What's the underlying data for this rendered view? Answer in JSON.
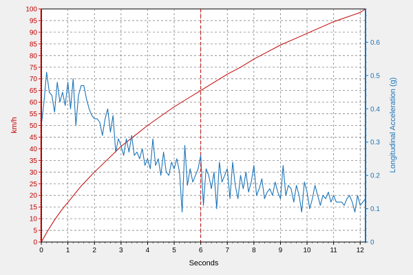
{
  "chart_data": {
    "type": "line",
    "xlabel": "Seconds",
    "ylabel_left": "km/h",
    "ylabel_right": "Longitudinal Acceleration (g)",
    "xlim": [
      0,
      12.2
    ],
    "ylim_left": [
      0,
      100
    ],
    "ylim_right": [
      0,
      0.7
    ],
    "x_ticks": [
      "0",
      "1",
      "2",
      "3",
      "4",
      "5",
      "6",
      "7",
      "8",
      "9",
      "10",
      "11",
      "12"
    ],
    "y_left_ticks": [
      "0",
      "5",
      "10",
      "15",
      "20",
      "25",
      "30",
      "35",
      "40",
      "45",
      "50",
      "55",
      "60",
      "65",
      "70",
      "75",
      "80",
      "85",
      "90",
      "95",
      "100"
    ],
    "y_right_ticks": [
      "0",
      "0.1",
      "0.2",
      "0.3",
      "0.4",
      "0.5",
      "0.6"
    ],
    "grid": true,
    "marker_x": 6,
    "colors": {
      "speed": "#c00000",
      "accel": "#1a73b8",
      "plot_bg": "#ffffff",
      "grid": "#808080"
    },
    "series": [
      {
        "axis": "left",
        "x": [
          0,
          0.25,
          0.5,
          0.75,
          1,
          1.5,
          2,
          2.5,
          3,
          3.5,
          4,
          4.5,
          5,
          5.5,
          6,
          6.5,
          7,
          7.5,
          8,
          8.5,
          9,
          9.5,
          10,
          10.5,
          11,
          11.5,
          12,
          12.2
        ],
        "values": [
          0,
          5,
          9.5,
          13.5,
          17,
          24,
          30,
          35.5,
          41,
          45.5,
          50,
          54,
          58,
          61.5,
          65,
          68.5,
          72,
          75,
          78.5,
          81.5,
          84.5,
          87,
          89.5,
          92,
          94.5,
          96.5,
          98.5,
          100
        ]
      },
      {
        "axis": "right",
        "x": [
          0,
          0.1,
          0.2,
          0.3,
          0.4,
          0.5,
          0.6,
          0.7,
          0.8,
          0.9,
          1,
          1.1,
          1.2,
          1.3,
          1.4,
          1.5,
          1.6,
          1.7,
          1.8,
          1.9,
          2,
          2.1,
          2.2,
          2.3,
          2.4,
          2.5,
          2.6,
          2.7,
          2.8,
          2.9,
          3,
          3.1,
          3.2,
          3.3,
          3.4,
          3.5,
          3.6,
          3.7,
          3.8,
          3.9,
          4,
          4.1,
          4.2,
          4.3,
          4.4,
          4.5,
          4.6,
          4.7,
          4.8,
          4.9,
          5,
          5.1,
          5.2,
          5.3,
          5.4,
          5.5,
          5.6,
          5.7,
          5.8,
          5.9,
          6,
          6.1,
          6.2,
          6.3,
          6.4,
          6.5,
          6.6,
          6.7,
          6.8,
          6.9,
          7,
          7.1,
          7.2,
          7.3,
          7.4,
          7.5,
          7.6,
          7.7,
          7.8,
          7.9,
          8,
          8.1,
          8.2,
          8.3,
          8.4,
          8.5,
          8.6,
          8.7,
          8.8,
          8.9,
          9,
          9.1,
          9.2,
          9.3,
          9.4,
          9.5,
          9.6,
          9.7,
          9.8,
          9.9,
          10,
          10.1,
          10.2,
          10.3,
          10.4,
          10.5,
          10.6,
          10.7,
          10.8,
          10.9,
          11,
          11.1,
          11.2,
          11.3,
          11.4,
          11.5,
          11.6,
          11.7,
          11.8,
          11.9,
          12,
          12.1,
          12.2
        ],
        "values": [
          0.35,
          0.42,
          0.51,
          0.45,
          0.44,
          0.39,
          0.48,
          0.42,
          0.45,
          0.41,
          0.48,
          0.4,
          0.49,
          0.35,
          0.44,
          0.47,
          0.47,
          0.43,
          0.4,
          0.38,
          0.37,
          0.37,
          0.36,
          0.32,
          0.37,
          0.4,
          0.33,
          0.38,
          0.27,
          0.31,
          0.29,
          0.26,
          0.31,
          0.27,
          0.32,
          0.26,
          0.27,
          0.25,
          0.28,
          0.23,
          0.25,
          0.22,
          0.31,
          0.23,
          0.25,
          0.2,
          0.27,
          0.21,
          0.2,
          0.24,
          0.22,
          0.25,
          0.21,
          0.09,
          0.29,
          0.17,
          0.22,
          0.18,
          0.2,
          0.22,
          0.26,
          0.11,
          0.22,
          0.2,
          0.16,
          0.21,
          0.1,
          0.24,
          0.18,
          0.2,
          0.22,
          0.13,
          0.24,
          0.17,
          0.13,
          0.2,
          0.16,
          0.21,
          0.15,
          0.18,
          0.23,
          0.14,
          0.16,
          0.19,
          0.13,
          0.15,
          0.16,
          0.14,
          0.18,
          0.15,
          0.13,
          0.23,
          0.14,
          0.17,
          0.16,
          0.12,
          0.17,
          0.14,
          0.09,
          0.18,
          0.15,
          0.1,
          0.13,
          0.17,
          0.14,
          0.11,
          0.14,
          0.13,
          0.15,
          0.12,
          0.14,
          0.12,
          0.12,
          0.12,
          0.11,
          0.13,
          0.14,
          0.12,
          0.09,
          0.14,
          0.11,
          0.12,
          0.13
        ]
      }
    ]
  }
}
